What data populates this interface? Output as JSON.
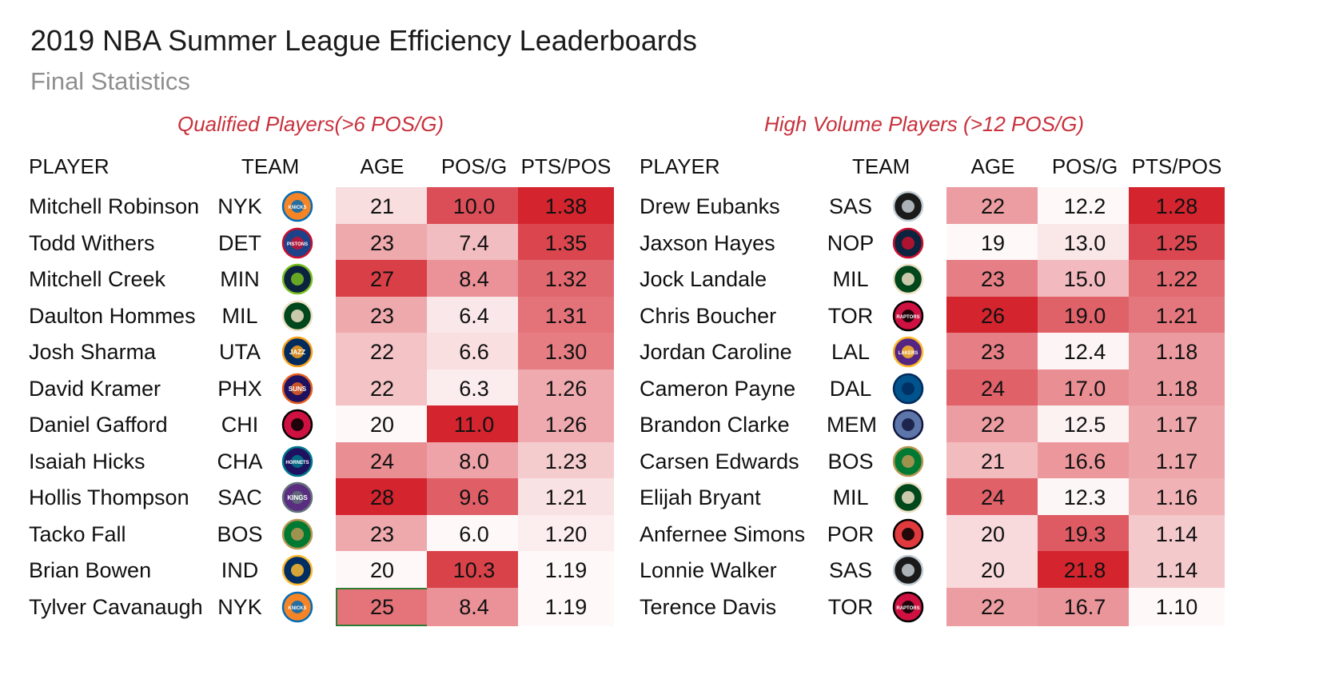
{
  "header": {
    "title": "2019 NBA Summer League Efficiency Leaderboards",
    "subtitle": "Final Statistics"
  },
  "columns": {
    "player": "PLAYER",
    "team": "TEAM",
    "age": "AGE",
    "pos_g": "POS/G",
    "pts_pos": "PTS/POS"
  },
  "heat_color": "#d4242e",
  "chart_data": [
    {
      "type": "table",
      "title": "Qualified Players(>6 POS/G)",
      "columns": [
        "PLAYER",
        "TEAM",
        "AGE",
        "POS/G",
        "PTS/POS"
      ],
      "rows": [
        {
          "player": "Mitchell Robinson",
          "team": "NYK",
          "age": "21",
          "pos_g": "10.0",
          "pts_pos": "1.38"
        },
        {
          "player": "Todd Withers",
          "team": "DET",
          "age": "23",
          "pos_g": "7.4",
          "pts_pos": "1.35"
        },
        {
          "player": "Mitchell Creek",
          "team": "MIN",
          "age": "27",
          "pos_g": "8.4",
          "pts_pos": "1.32"
        },
        {
          "player": "Daulton Hommes",
          "team": "MIL",
          "age": "23",
          "pos_g": "6.4",
          "pts_pos": "1.31"
        },
        {
          "player": "Josh Sharma",
          "team": "UTA",
          "age": "22",
          "pos_g": "6.6",
          "pts_pos": "1.30"
        },
        {
          "player": "David Kramer",
          "team": "PHX",
          "age": "22",
          "pos_g": "6.3",
          "pts_pos": "1.26"
        },
        {
          "player": "Daniel Gafford",
          "team": "CHI",
          "age": "20",
          "pos_g": "11.0",
          "pts_pos": "1.26"
        },
        {
          "player": "Isaiah Hicks",
          "team": "CHA",
          "age": "24",
          "pos_g": "8.0",
          "pts_pos": "1.23"
        },
        {
          "player": "Hollis Thompson",
          "team": "SAC",
          "age": "28",
          "pos_g": "9.6",
          "pts_pos": "1.21"
        },
        {
          "player": "Tacko Fall",
          "team": "BOS",
          "age": "23",
          "pos_g": "6.0",
          "pts_pos": "1.20"
        },
        {
          "player": "Brian Bowen",
          "team": "IND",
          "age": "20",
          "pos_g": "10.3",
          "pts_pos": "1.19"
        },
        {
          "player": "Tylver Cavanaugh",
          "team": "NYK",
          "age": "25",
          "pos_g": "8.4",
          "pts_pos": "1.19"
        }
      ]
    },
    {
      "type": "table",
      "title": "High Volume Players (>12 POS/G)",
      "columns": [
        "PLAYER",
        "TEAM",
        "AGE",
        "POS/G",
        "PTS/POS"
      ],
      "rows": [
        {
          "player": "Drew Eubanks",
          "team": "SAS",
          "age": "22",
          "pos_g": "12.2",
          "pts_pos": "1.28"
        },
        {
          "player": "Jaxson Hayes",
          "team": "NOP",
          "age": "19",
          "pos_g": "13.0",
          "pts_pos": "1.25"
        },
        {
          "player": "Jock Landale",
          "team": "MIL",
          "age": "23",
          "pos_g": "15.0",
          "pts_pos": "1.22"
        },
        {
          "player": "Chris Boucher",
          "team": "TOR",
          "age": "26",
          "pos_g": "19.0",
          "pts_pos": "1.21"
        },
        {
          "player": "Jordan Caroline",
          "team": "LAL",
          "age": "23",
          "pos_g": "12.4",
          "pts_pos": "1.18"
        },
        {
          "player": "Cameron Payne",
          "team": "DAL",
          "age": "24",
          "pos_g": "17.0",
          "pts_pos": "1.18"
        },
        {
          "player": "Brandon Clarke",
          "team": "MEM",
          "age": "22",
          "pos_g": "12.5",
          "pts_pos": "1.17"
        },
        {
          "player": "Carsen Edwards",
          "team": "BOS",
          "age": "21",
          "pos_g": "16.6",
          "pts_pos": "1.17"
        },
        {
          "player": "Elijah Bryant",
          "team": "MIL",
          "age": "24",
          "pos_g": "12.3",
          "pts_pos": "1.16"
        },
        {
          "player": "Anfernee Simons",
          "team": "POR",
          "age": "20",
          "pos_g": "19.3",
          "pts_pos": "1.14"
        },
        {
          "player": "Lonnie Walker",
          "team": "SAS",
          "age": "20",
          "pos_g": "21.8",
          "pts_pos": "1.14"
        },
        {
          "player": "Terence Davis",
          "team": "TOR",
          "age": "22",
          "pos_g": "16.7",
          "pts_pos": "1.10"
        }
      ]
    }
  ],
  "team_logos": {
    "NYK": {
      "icon": "knicks-logo-icon",
      "text": "KNICKS",
      "c1": "#f58426",
      "c2": "#006bb6"
    },
    "DET": {
      "icon": "pistons-logo-icon",
      "text": "PISTONS",
      "c1": "#1d428a",
      "c2": "#c8102e"
    },
    "MIN": {
      "icon": "timberwolves-logo-icon",
      "text": "",
      "c1": "#0c2340",
      "c2": "#78be20"
    },
    "MIL": {
      "icon": "bucks-logo-icon",
      "text": "",
      "c1": "#00471b",
      "c2": "#eee1c6"
    },
    "UTA": {
      "icon": "jazz-logo-icon",
      "text": "JAZZ",
      "c1": "#002b5c",
      "c2": "#f9a01b"
    },
    "PHX": {
      "icon": "suns-logo-icon",
      "text": "SUNS",
      "c1": "#1d1160",
      "c2": "#e56020"
    },
    "CHI": {
      "icon": "bulls-logo-icon",
      "text": "",
      "c1": "#ce1141",
      "c2": "#000000"
    },
    "CHA": {
      "icon": "hornets-logo-icon",
      "text": "HORNETS",
      "c1": "#1d1160",
      "c2": "#00788c"
    },
    "SAC": {
      "icon": "kings-logo-icon",
      "text": "KINGS",
      "c1": "#5a2d81",
      "c2": "#63727a"
    },
    "BOS": {
      "icon": "celtics-logo-icon",
      "text": "",
      "c1": "#007a33",
      "c2": "#ba9653"
    },
    "IND": {
      "icon": "pacers-logo-icon",
      "text": "",
      "c1": "#002d62",
      "c2": "#fdbb30"
    },
    "SAS": {
      "icon": "spurs-logo-icon",
      "text": "",
      "c1": "#1a1a1a",
      "c2": "#c4ced4"
    },
    "NOP": {
      "icon": "pelicans-logo-icon",
      "text": "",
      "c1": "#0c2340",
      "c2": "#c8102e"
    },
    "TOR": {
      "icon": "raptors-logo-icon",
      "text": "RAPTORS",
      "c1": "#ce1141",
      "c2": "#000000"
    },
    "LAL": {
      "icon": "lakers-logo-icon",
      "text": "LAKERS",
      "c1": "#552583",
      "c2": "#fdb927"
    },
    "DAL": {
      "icon": "mavericks-logo-icon",
      "text": "",
      "c1": "#00538c",
      "c2": "#002b5e"
    },
    "MEM": {
      "icon": "grizzlies-logo-icon",
      "text": "",
      "c1": "#5d76a9",
      "c2": "#12173f"
    },
    "POR": {
      "icon": "blazers-logo-icon",
      "text": "",
      "c1": "#e03a3e",
      "c2": "#000000"
    }
  }
}
